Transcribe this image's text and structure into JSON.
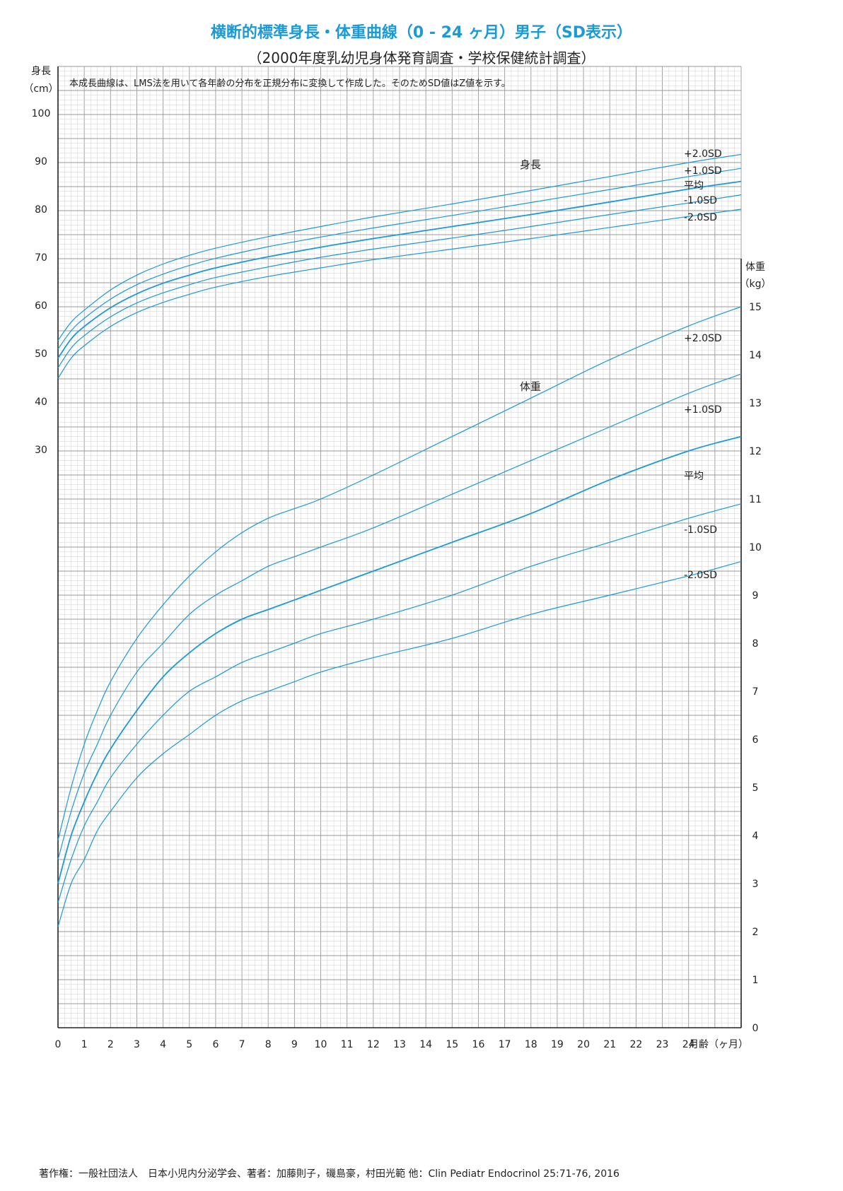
{
  "title": "横断的標準身長・体重曲線（0 - 24 ヶ月）男子（SD表示）",
  "subtitle": "（2000年度乳幼児身体発育調査・学校保健統計調査）",
  "note": "本成長曲線は、LMS法を用いて各年齢の分布を正規分布に変換して作成した。そのためSD値はZ値を示す。",
  "footer": "著作権：一般社団法人　日本小児内分泌学会、著者：加藤則子，磯島豪，村田光範 他：Clin Pediatr Endocrinol 25:71-76, 2016",
  "colors": {
    "curve": "#1a9ad6",
    "grid_minor": "#cfcfcf",
    "grid_major": "#9a9a9a",
    "axis": "#222222",
    "title": "#1a9ad6"
  },
  "chart_data": {
    "type": "line",
    "x_axis": {
      "label": "月齢（ヶ月）",
      "range": [
        0,
        26
      ],
      "ticks": [
        0,
        1,
        2,
        3,
        4,
        5,
        6,
        7,
        8,
        9,
        10,
        11,
        12,
        13,
        14,
        15,
        16,
        17,
        18,
        19,
        20,
        21,
        22,
        23,
        24
      ]
    },
    "height_axis": {
      "label_line1": "身長",
      "label_line2": "（cm）",
      "range": [
        18,
        110
      ],
      "ticks": [
        30,
        40,
        50,
        60,
        70,
        80,
        90,
        100
      ]
    },
    "weight_axis": {
      "label_line1": "体重",
      "label_line2": "（kg）",
      "range": [
        0,
        16
      ],
      "ticks": [
        0,
        1,
        2,
        3,
        4,
        5,
        6,
        7,
        8,
        9,
        10,
        11,
        12,
        13,
        14,
        15
      ]
    },
    "height": {
      "label": "身長",
      "series": [
        {
          "name": "+2.0SD",
          "x": [
            0,
            0.5,
            1,
            2,
            3,
            4,
            5,
            6,
            8,
            10,
            12,
            15,
            18,
            21,
            24,
            26
          ],
          "values": [
            52.7,
            56.5,
            59.0,
            63.2,
            66.3,
            68.6,
            70.4,
            71.9,
            74.3,
            76.4,
            78.4,
            81.1,
            83.9,
            86.8,
            89.7,
            91.4
          ]
        },
        {
          "name": "+1.0SD",
          "x": [
            0,
            0.5,
            1,
            2,
            3,
            4,
            5,
            6,
            8,
            10,
            12,
            15,
            18,
            21,
            24,
            26
          ],
          "values": [
            50.9,
            54.7,
            57.3,
            61.3,
            64.3,
            66.5,
            68.3,
            69.8,
            72.2,
            74.2,
            76.1,
            78.7,
            81.4,
            84.1,
            86.8,
            88.5
          ]
        },
        {
          "name": "平均",
          "x": [
            0,
            0.5,
            1,
            2,
            3,
            4,
            5,
            6,
            8,
            10,
            12,
            15,
            18,
            21,
            24,
            26
          ],
          "values": [
            49.0,
            53.0,
            55.6,
            59.5,
            62.4,
            64.6,
            66.3,
            67.8,
            70.1,
            72.1,
            73.9,
            76.4,
            78.9,
            81.5,
            84.2,
            85.8
          ]
        },
        {
          "name": "-1.0SD",
          "x": [
            0,
            0.5,
            1,
            2,
            3,
            4,
            5,
            6,
            8,
            10,
            12,
            15,
            18,
            21,
            24,
            26
          ],
          "values": [
            47.0,
            51.1,
            53.7,
            57.6,
            60.5,
            62.6,
            64.3,
            65.8,
            68.0,
            70.0,
            71.7,
            74.0,
            76.4,
            78.9,
            81.3,
            83.0
          ]
        },
        {
          "name": "-2.0SD",
          "x": [
            0,
            0.5,
            1,
            2,
            3,
            4,
            5,
            6,
            8,
            10,
            12,
            15,
            18,
            21,
            24,
            26
          ],
          "values": [
            44.8,
            49.0,
            51.6,
            55.6,
            58.5,
            60.6,
            62.3,
            63.8,
            66.0,
            67.8,
            69.5,
            71.7,
            73.9,
            76.2,
            78.5,
            80.0
          ]
        }
      ]
    },
    "weight": {
      "label": "体重",
      "series": [
        {
          "name": "+2.0SD",
          "x": [
            0,
            0.5,
            1,
            1.5,
            2,
            3,
            4,
            5,
            6,
            7,
            8,
            9,
            10,
            12,
            15,
            18,
            21,
            24,
            26
          ],
          "values": [
            3.9,
            5.0,
            5.9,
            6.6,
            7.2,
            8.1,
            8.8,
            9.4,
            9.9,
            10.3,
            10.6,
            10.8,
            11.0,
            11.5,
            12.3,
            13.1,
            13.9,
            14.6,
            15.0
          ]
        },
        {
          "name": "+1.0SD",
          "x": [
            0,
            0.5,
            1,
            1.5,
            2,
            3,
            4,
            5,
            6,
            7,
            8,
            9,
            10,
            12,
            15,
            18,
            21,
            24,
            26
          ],
          "values": [
            3.5,
            4.5,
            5.3,
            5.9,
            6.5,
            7.4,
            8.0,
            8.6,
            9.0,
            9.3,
            9.6,
            9.8,
            10.0,
            10.4,
            11.1,
            11.8,
            12.5,
            13.2,
            13.6
          ]
        },
        {
          "name": "平均",
          "x": [
            0,
            0.5,
            1,
            1.5,
            2,
            3,
            4,
            5,
            6,
            7,
            8,
            9,
            10,
            12,
            15,
            18,
            21,
            24,
            26
          ],
          "values": [
            3.0,
            4.0,
            4.7,
            5.3,
            5.8,
            6.6,
            7.3,
            7.8,
            8.2,
            8.5,
            8.7,
            8.9,
            9.1,
            9.5,
            10.1,
            10.7,
            11.4,
            12.0,
            12.3
          ]
        },
        {
          "name": "-1.0SD",
          "x": [
            0,
            0.5,
            1,
            1.5,
            2,
            3,
            4,
            5,
            6,
            7,
            8,
            9,
            10,
            12,
            15,
            18,
            21,
            24,
            26
          ],
          "values": [
            2.6,
            3.5,
            4.2,
            4.7,
            5.2,
            5.9,
            6.5,
            7.0,
            7.3,
            7.6,
            7.8,
            8.0,
            8.2,
            8.5,
            9.0,
            9.6,
            10.1,
            10.6,
            10.9
          ]
        },
        {
          "name": "-2.0SD",
          "x": [
            0,
            0.5,
            1,
            1.5,
            2,
            3,
            4,
            5,
            6,
            7,
            8,
            9,
            10,
            12,
            15,
            18,
            21,
            24,
            26
          ],
          "values": [
            2.1,
            3.0,
            3.5,
            4.1,
            4.5,
            5.2,
            5.7,
            6.1,
            6.5,
            6.8,
            7.0,
            7.2,
            7.4,
            7.7,
            8.1,
            8.6,
            9.0,
            9.4,
            9.7
          ]
        }
      ]
    }
  }
}
